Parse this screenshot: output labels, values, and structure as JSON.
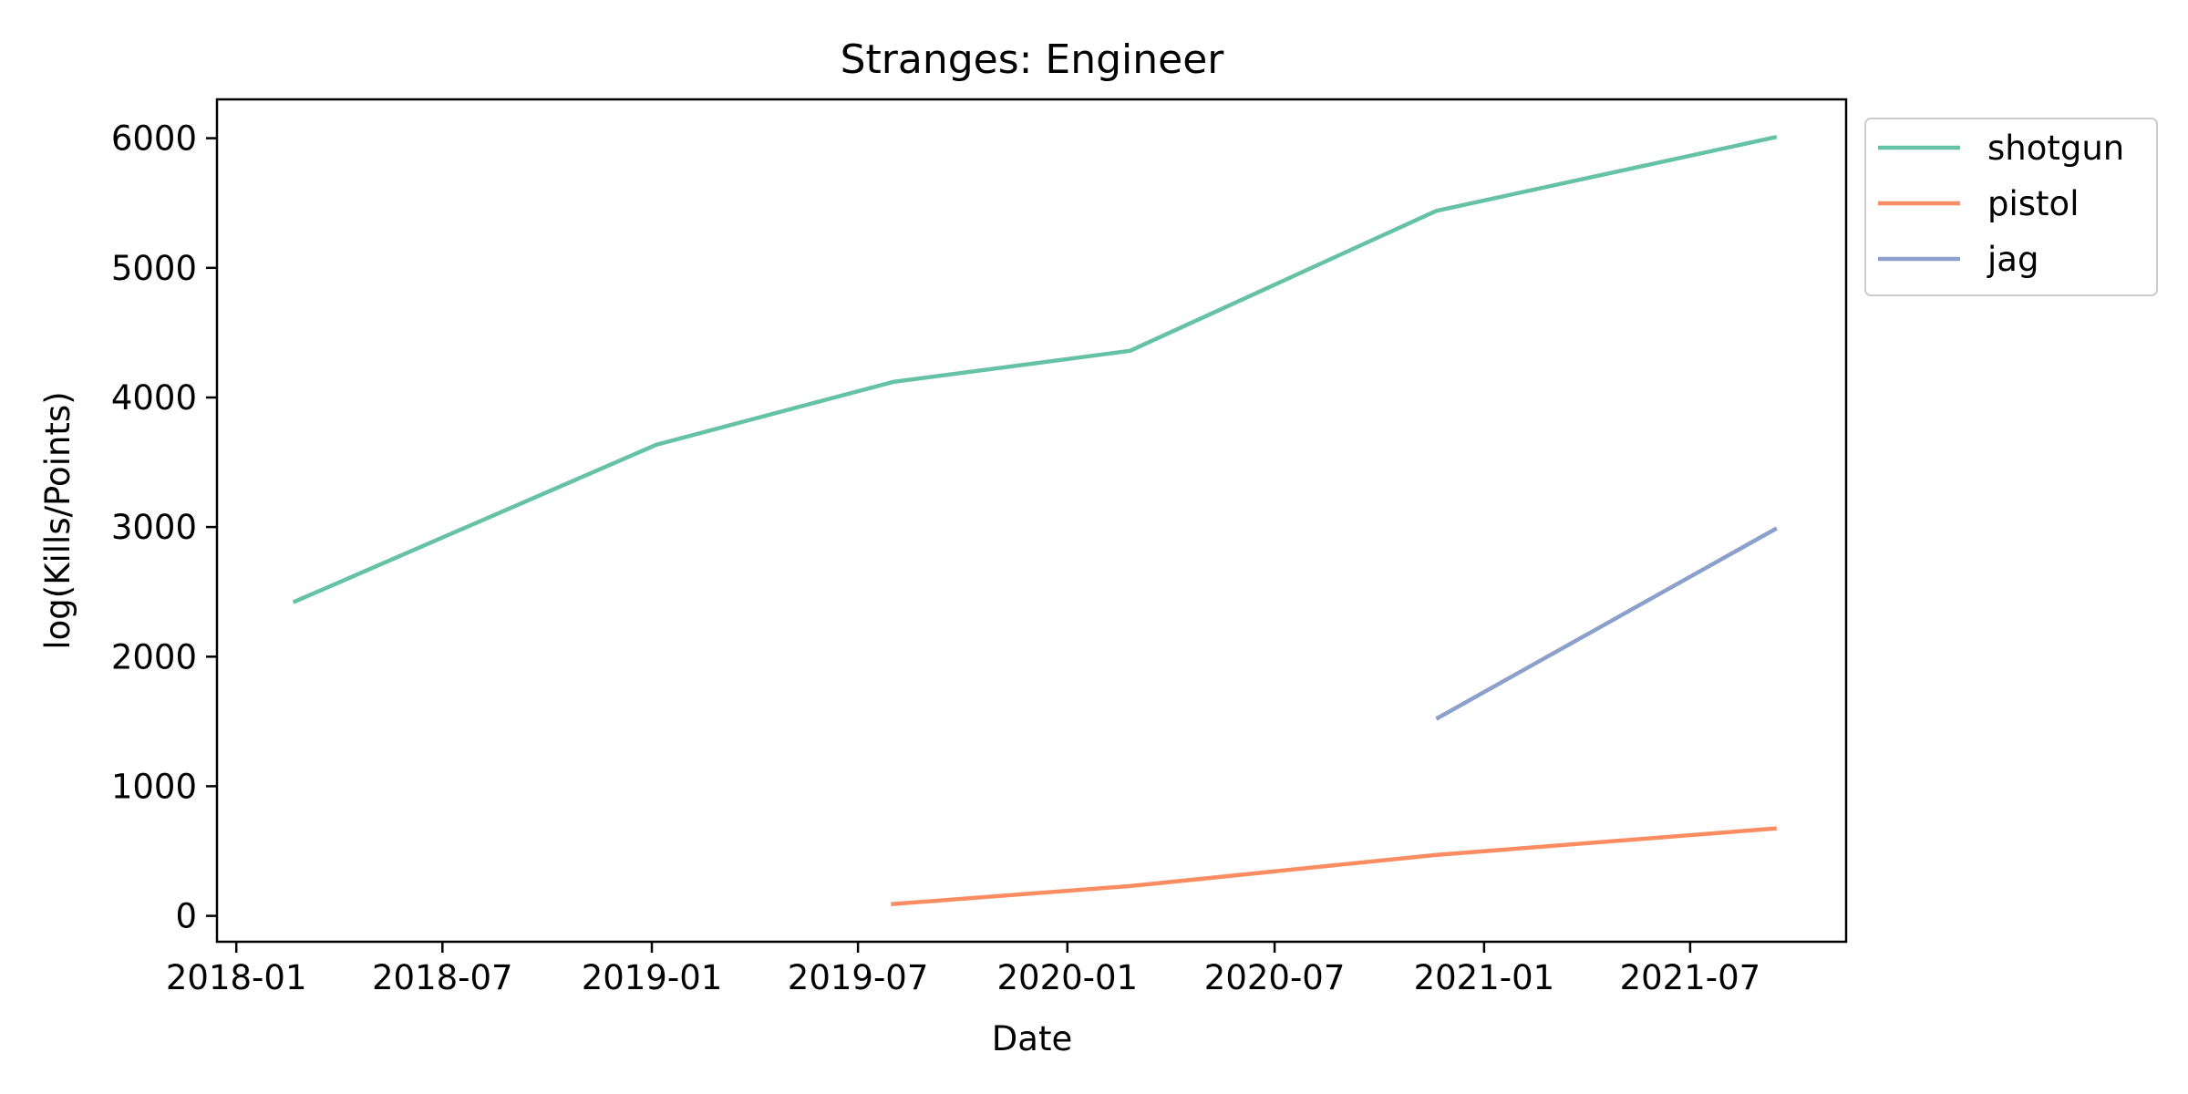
{
  "chart_data": {
    "type": "line",
    "title": "Stranges: Engineer",
    "xlabel": "Date",
    "ylabel": "log(Kills/Points)",
    "x_ticks": [
      "2018-01",
      "2018-07",
      "2019-01",
      "2019-07",
      "2020-01",
      "2020-07",
      "2021-01",
      "2021-07"
    ],
    "y_ticks": [
      0,
      1000,
      2000,
      3000,
      4000,
      5000,
      6000
    ],
    "xlim": [
      "2017-12-15",
      "2021-11-15"
    ],
    "ylim": [
      -200,
      6300
    ],
    "grid": false,
    "legend_position": "outside-top-right",
    "series": [
      {
        "name": "shotgun",
        "color": "#66c2a5",
        "points": [
          {
            "x": "2018-02-20",
            "y": 2420
          },
          {
            "x": "2019-01-05",
            "y": 3635
          },
          {
            "x": "2019-08-01",
            "y": 4120
          },
          {
            "x": "2020-02-25",
            "y": 4360
          },
          {
            "x": "2020-11-20",
            "y": 5440
          },
          {
            "x": "2021-09-15",
            "y": 6010
          }
        ]
      },
      {
        "name": "pistol",
        "color": "#fc8d62",
        "points": [
          {
            "x": "2019-07-30",
            "y": 90
          },
          {
            "x": "2020-02-25",
            "y": 230
          },
          {
            "x": "2020-11-20",
            "y": 470
          },
          {
            "x": "2021-09-15",
            "y": 675
          }
        ]
      },
      {
        "name": "jag",
        "color": "#8da0cb",
        "points": [
          {
            "x": "2020-11-20",
            "y": 1520
          },
          {
            "x": "2021-09-15",
            "y": 2990
          }
        ]
      }
    ]
  }
}
